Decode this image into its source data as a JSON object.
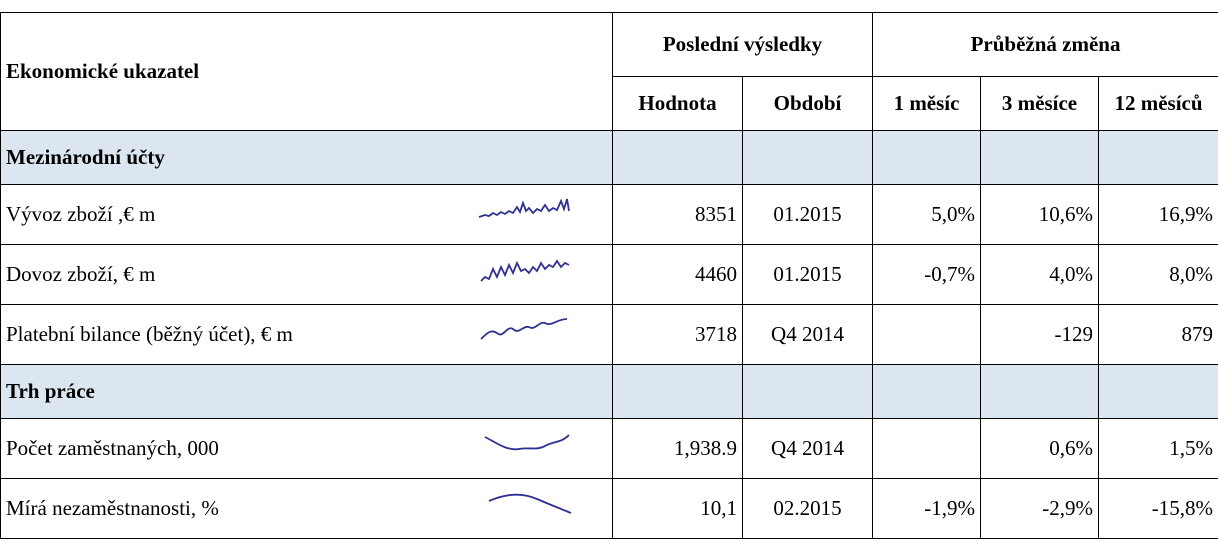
{
  "table": {
    "header": {
      "indicator": "Ekonomické ukazatel",
      "latest": "Poslední výsledky",
      "change": "Průběžná změna",
      "columns": [
        "Hodnota",
        "Období",
        "1 měsíc",
        "3 měsíce",
        "12 měsíců"
      ]
    },
    "sections": [
      {
        "title": "Mezinárodní účty",
        "rows": [
          {
            "label": "Vývoz zboží ,€ m",
            "cells": [
              "8351",
              "01.2015",
              "5,0%",
              "10,6%",
              "16,9%"
            ]
          },
          {
            "label": "Dovoz zboží, € m",
            "cells": [
              "4460",
              "01.2015",
              "-0,7%",
              "4,0%",
              "8,0%"
            ]
          },
          {
            "label": "Platební bilance (běžný účet), € m",
            "cells": [
              "3718",
              "Q4 2014",
              null,
              "-129",
              "879"
            ]
          }
        ]
      },
      {
        "title": "Trh práce",
        "rows": [
          {
            "label": "Počet zaměstnaných, 000",
            "cells": [
              "1,938.9",
              "Q4 2014",
              null,
              "0,6%",
              "1,5%"
            ]
          },
          {
            "label": "Mírá nezaměstnanosti, %",
            "cells": [
              "10,1",
              "02.2015",
              "-1,9%",
              "-2,9%",
              "-15,8%"
            ]
          }
        ]
      }
    ]
  }
}
